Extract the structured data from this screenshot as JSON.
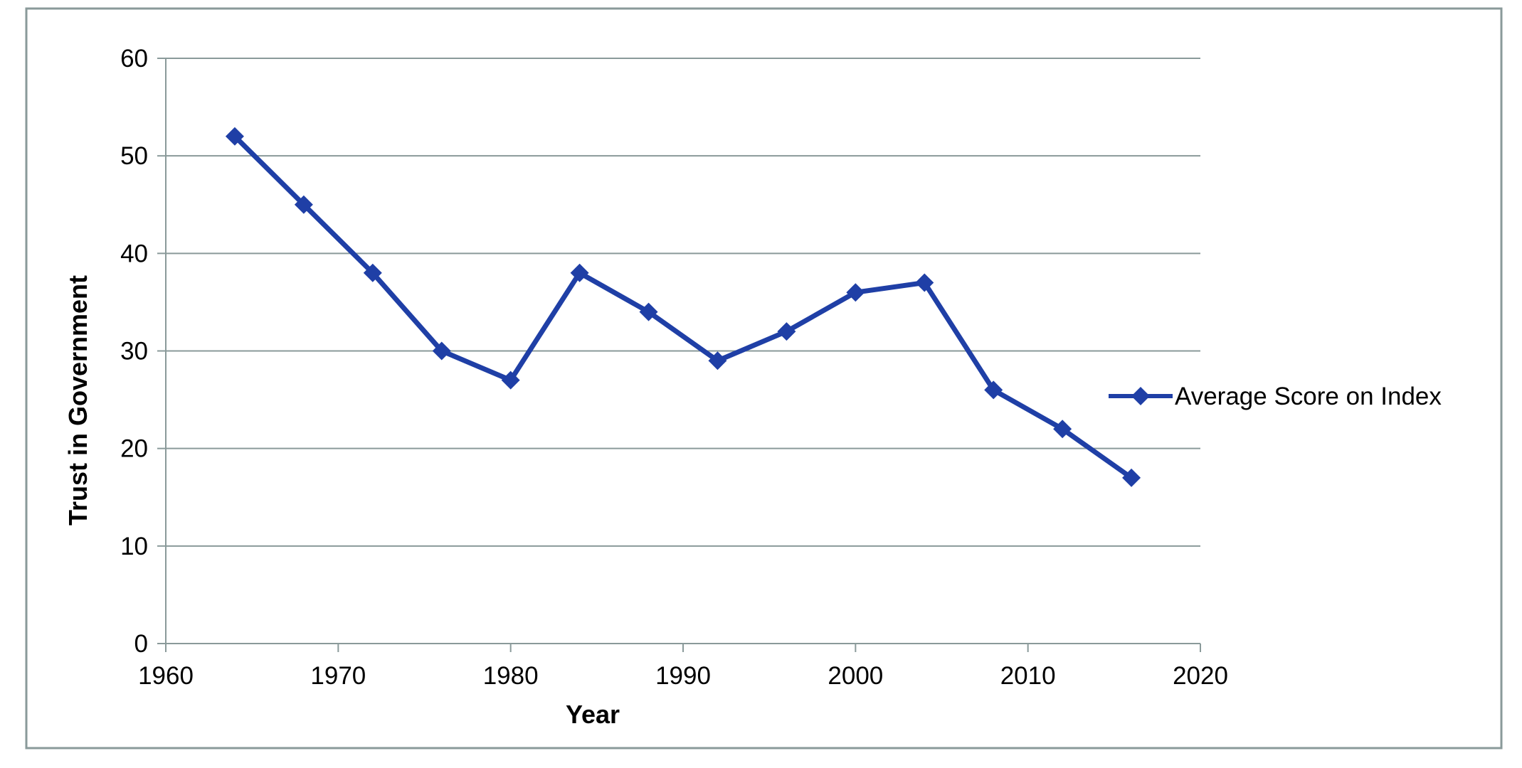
{
  "chart_data": {
    "type": "line",
    "title": "",
    "xlabel": "Year",
    "ylabel": "Trust in Government",
    "xlim": [
      1960,
      2020
    ],
    "ylim": [
      0,
      60
    ],
    "x_ticks": [
      1960,
      1970,
      1980,
      1990,
      2000,
      2010,
      2020
    ],
    "y_ticks": [
      0,
      10,
      20,
      30,
      40,
      50,
      60
    ],
    "grid": "horizontal",
    "legend_position": "right",
    "series": [
      {
        "name": "Average Score on Index",
        "color": "#1f3fa6",
        "marker": "diamond",
        "x": [
          1964,
          1968,
          1972,
          1976,
          1980,
          1984,
          1988,
          1992,
          1996,
          2000,
          2004,
          2008,
          2012,
          2016
        ],
        "y": [
          52,
          45,
          38,
          30,
          27,
          38,
          34,
          29,
          32,
          36,
          37,
          26,
          22,
          17
        ]
      }
    ]
  },
  "colors": {
    "frame": "#8a9a9a",
    "grid": "#8a9a9a",
    "axis": "#8a9a9a",
    "series": "#1f3fa6"
  }
}
